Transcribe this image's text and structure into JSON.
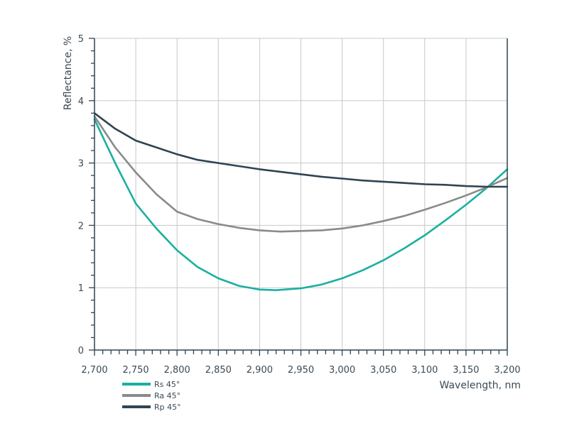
{
  "chart_data": {
    "type": "line",
    "title": "",
    "xlabel": "Wavelength, nm",
    "ylabel": "Reflectance, %",
    "xlim": [
      2700,
      3200
    ],
    "ylim": [
      0,
      5
    ],
    "x_ticks": [
      2700,
      2750,
      2800,
      2850,
      2900,
      2950,
      3000,
      3050,
      3100,
      3150,
      3200
    ],
    "x_tick_labels": [
      "2,700",
      "2,750",
      "2,800",
      "2,850",
      "2,900",
      "2,950",
      "3,000",
      "3,050",
      "3,100",
      "3,150",
      "3,200"
    ],
    "y_ticks": [
      0,
      1,
      2,
      3,
      4,
      5
    ],
    "y_tick_labels": [
      "0",
      "1",
      "2",
      "3",
      "4",
      "5"
    ],
    "grid": true,
    "legend_position": "bottom-left",
    "series": [
      {
        "name": "Rs 45°",
        "color": "#1ab0a0",
        "x": [
          2700,
          2725,
          2750,
          2775,
          2800,
          2825,
          2850,
          2875,
          2900,
          2920,
          2950,
          2975,
          3000,
          3025,
          3050,
          3075,
          3100,
          3125,
          3150,
          3175,
          3200
        ],
        "y": [
          3.7,
          3.0,
          2.35,
          1.95,
          1.6,
          1.33,
          1.15,
          1.03,
          0.97,
          0.96,
          0.99,
          1.05,
          1.15,
          1.28,
          1.44,
          1.63,
          1.84,
          2.08,
          2.33,
          2.6,
          2.9
        ]
      },
      {
        "name": "Ra 45°",
        "color": "#8a8a8a",
        "x": [
          2700,
          2725,
          2750,
          2775,
          2800,
          2825,
          2850,
          2875,
          2900,
          2925,
          2950,
          2975,
          3000,
          3025,
          3050,
          3075,
          3100,
          3125,
          3150,
          3175,
          3200
        ],
        "y": [
          3.75,
          3.25,
          2.85,
          2.5,
          2.22,
          2.1,
          2.02,
          1.96,
          1.92,
          1.9,
          1.91,
          1.92,
          1.95,
          2.0,
          2.07,
          2.15,
          2.25,
          2.36,
          2.48,
          2.61,
          2.76
        ]
      },
      {
        "name": "Rp 45°",
        "color": "#2e4452",
        "x": [
          2700,
          2725,
          2750,
          2775,
          2800,
          2825,
          2850,
          2875,
          2900,
          2925,
          2950,
          2975,
          3000,
          3025,
          3050,
          3075,
          3100,
          3125,
          3150,
          3175,
          3200
        ],
        "y": [
          3.8,
          3.55,
          3.36,
          3.25,
          3.14,
          3.05,
          3.0,
          2.95,
          2.9,
          2.86,
          2.82,
          2.78,
          2.75,
          2.72,
          2.7,
          2.68,
          2.66,
          2.65,
          2.63,
          2.62,
          2.62
        ]
      }
    ]
  }
}
